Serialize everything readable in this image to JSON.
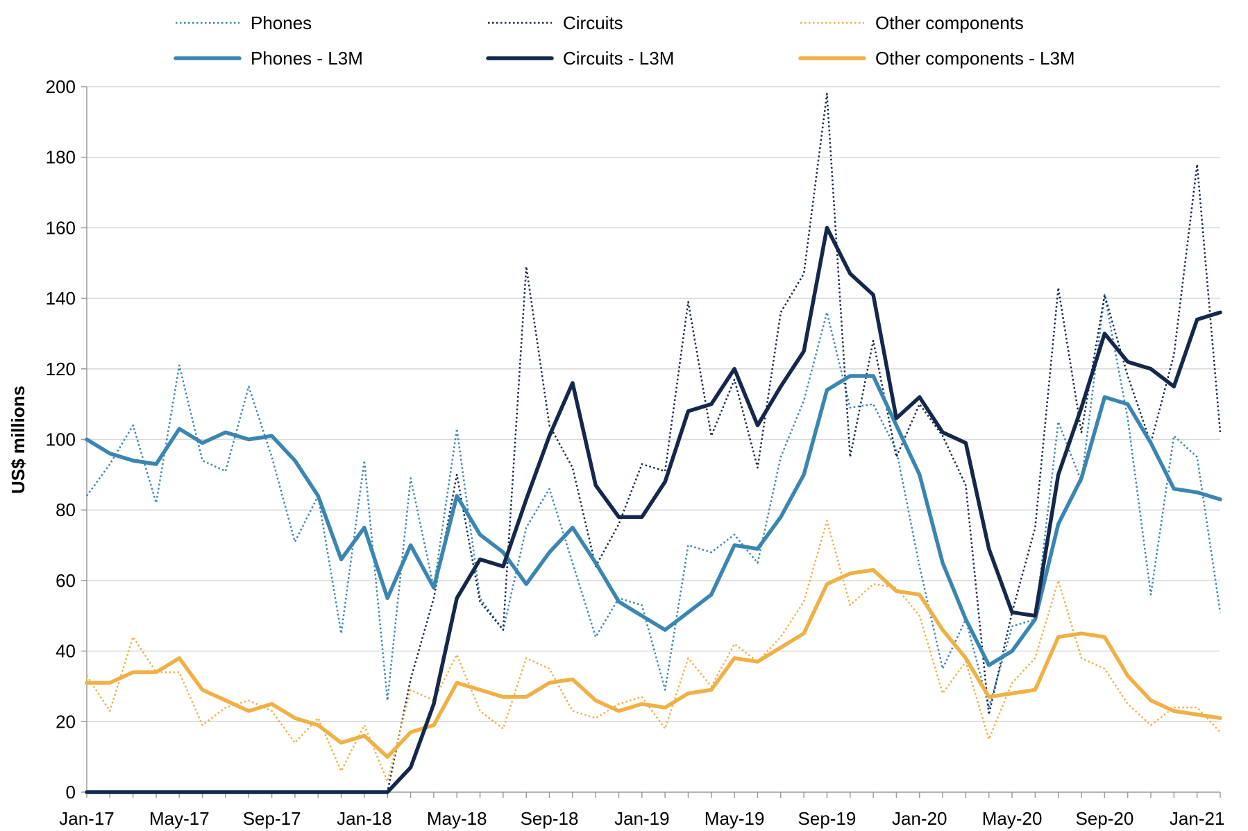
{
  "chart_data": {
    "type": "line",
    "title": "",
    "xlabel": "",
    "ylabel": "US$ millions",
    "ylim": [
      0,
      200
    ],
    "yticks": [
      0,
      20,
      40,
      60,
      80,
      100,
      120,
      140,
      160,
      180,
      200
    ],
    "grid": "horizontal",
    "legend_position": "top",
    "x": [
      "Jan-17",
      "Feb-17",
      "Mar-17",
      "Apr-17",
      "May-17",
      "Jun-17",
      "Jul-17",
      "Aug-17",
      "Sep-17",
      "Oct-17",
      "Nov-17",
      "Dec-17",
      "Jan-18",
      "Feb-18",
      "Mar-18",
      "Apr-18",
      "May-18",
      "Jun-18",
      "Jul-18",
      "Aug-18",
      "Sep-18",
      "Oct-18",
      "Nov-18",
      "Dec-18",
      "Jan-19",
      "Feb-19",
      "Mar-19",
      "Apr-19",
      "May-19",
      "Jun-19",
      "Jul-19",
      "Aug-19",
      "Sep-19",
      "Oct-19",
      "Nov-19",
      "Dec-19",
      "Jan-20",
      "Feb-20",
      "Mar-20",
      "Apr-20",
      "May-20",
      "Jun-20",
      "Jul-20",
      "Aug-20",
      "Sep-20",
      "Oct-20",
      "Nov-20",
      "Dec-20",
      "Jan-21",
      "Feb-21"
    ],
    "xtick_labels": [
      "Jan-17",
      "May-17",
      "Sep-17",
      "Jan-18",
      "May-18",
      "Sep-18",
      "Jan-19",
      "May-19",
      "Sep-19",
      "Jan-20",
      "May-20",
      "Sep-20",
      "Jan-21"
    ],
    "series": [
      {
        "name": "Phones",
        "style": "dotted",
        "color": "#3a85b1",
        "values": [
          84,
          93,
          104,
          82,
          121,
          94,
          91,
          115,
          95,
          71,
          84,
          45,
          94,
          26,
          89,
          58,
          103,
          55,
          46,
          75,
          86,
          65,
          44,
          55,
          53,
          29,
          70,
          68,
          73,
          65,
          95,
          111,
          136,
          109,
          110,
          97,
          64,
          35,
          49,
          24,
          47,
          49,
          105,
          88,
          141,
          106,
          56,
          101,
          95,
          51
        ]
      },
      {
        "name": "Circuits",
        "style": "dotted",
        "color": "#15284b",
        "values": [
          0,
          0,
          0,
          0,
          0,
          0,
          0,
          0,
          0,
          0,
          0,
          0,
          0,
          0,
          32,
          55,
          90,
          54,
          46,
          149,
          104,
          92,
          64,
          76,
          93,
          91,
          139,
          101,
          117,
          92,
          136,
          147,
          198,
          95,
          128,
          95,
          110,
          101,
          87,
          22,
          51,
          75,
          143,
          102,
          141,
          118,
          99,
          124,
          178,
          102
        ]
      },
      {
        "name": "Other components",
        "style": "dotted",
        "color": "#f0b045",
        "values": [
          33,
          23,
          44,
          34,
          34,
          19,
          24,
          26,
          23,
          14,
          21,
          6,
          19,
          3,
          29,
          26,
          39,
          23,
          18,
          38,
          35,
          23,
          21,
          25,
          27,
          18,
          38,
          30,
          42,
          37,
          44,
          54,
          77,
          53,
          59,
          58,
          50,
          28,
          37,
          15,
          31,
          38,
          60,
          38,
          35,
          25,
          19,
          24,
          24,
          17
        ]
      },
      {
        "name": "Phones - L3M",
        "style": "solid",
        "color": "#3a85b1",
        "values": [
          100,
          96,
          94,
          93,
          103,
          99,
          102,
          100,
          101,
          94,
          84,
          66,
          75,
          55,
          70,
          58,
          84,
          73,
          68,
          59,
          68,
          75,
          65,
          54,
          50,
          46,
          51,
          56,
          70,
          69,
          78,
          90,
          114,
          118,
          118,
          104,
          90,
          65,
          49,
          36,
          40,
          49,
          76,
          89,
          112,
          110,
          99,
          86,
          85,
          83
        ]
      },
      {
        "name": "Circuits - L3M",
        "style": "solid",
        "color": "#15284b",
        "values": [
          0,
          0,
          0,
          0,
          0,
          0,
          0,
          0,
          0,
          0,
          0,
          0,
          0,
          0,
          7,
          25,
          55,
          66,
          64,
          83,
          101,
          116,
          87,
          78,
          78,
          88,
          108,
          110,
          120,
          104,
          115,
          125,
          160,
          147,
          141,
          106,
          112,
          102,
          99,
          69,
          51,
          50,
          90,
          109,
          130,
          122,
          120,
          115,
          134,
          136
        ]
      },
      {
        "name": "Other components - L3M",
        "style": "solid",
        "color": "#f0b045",
        "values": [
          31,
          31,
          34,
          34,
          38,
          29,
          26,
          23,
          25,
          21,
          19,
          14,
          16,
          10,
          17,
          19,
          31,
          29,
          27,
          27,
          31,
          32,
          26,
          23,
          25,
          24,
          28,
          29,
          38,
          37,
          41,
          45,
          59,
          62,
          63,
          57,
          56,
          46,
          38,
          27,
          28,
          29,
          44,
          45,
          44,
          33,
          26,
          23,
          22,
          21
        ]
      }
    ]
  }
}
